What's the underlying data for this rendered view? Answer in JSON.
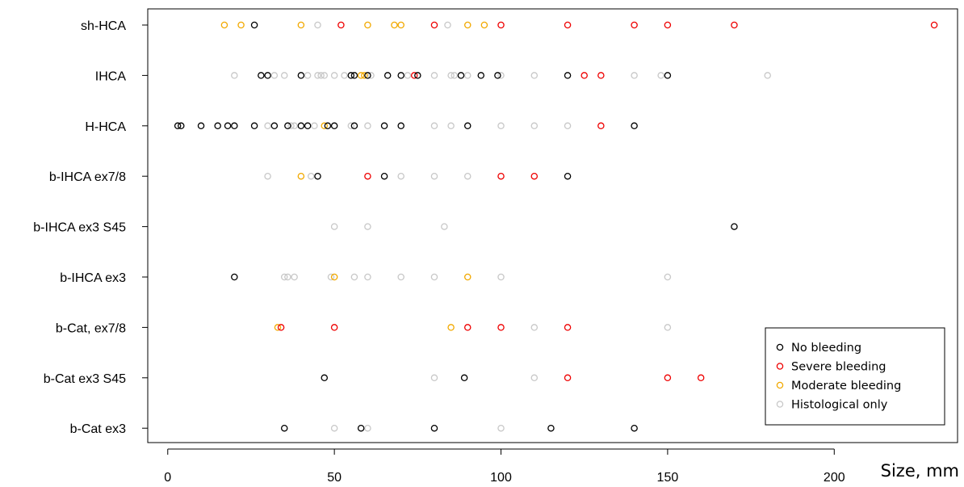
{
  "chart_data": {
    "type": "scatter",
    "xlabel": "Size, mm",
    "ylabel": "",
    "xlim": [
      -6,
      237
    ],
    "x_ticks": [
      "0",
      "50",
      "100",
      "150",
      "200"
    ],
    "x_tick_values": [
      0,
      50,
      100,
      150,
      200
    ],
    "categories": [
      "sh-HCA",
      "IHCA",
      "H-HCA",
      "b-IHCA ex7/8",
      "b-IHCA ex3 S45",
      "b-IHCA ex3",
      "b-Cat, ex7/8",
      "b-Cat ex3 S45",
      "b-Cat ex3"
    ],
    "legend_position": "bottom-right",
    "grid": false,
    "series": [
      {
        "name": "Histological only",
        "color": "#c8c8c8",
        "points": [
          {
            "category": "sh-HCA",
            "x": 45
          },
          {
            "category": "sh-HCA",
            "x": 84
          },
          {
            "category": "IHCA",
            "x": 20
          },
          {
            "category": "IHCA",
            "x": 32
          },
          {
            "category": "IHCA",
            "x": 35
          },
          {
            "category": "IHCA",
            "x": 42
          },
          {
            "category": "IHCA",
            "x": 45
          },
          {
            "category": "IHCA",
            "x": 46
          },
          {
            "category": "IHCA",
            "x": 47
          },
          {
            "category": "IHCA",
            "x": 50
          },
          {
            "category": "IHCA",
            "x": 53
          },
          {
            "category": "IHCA",
            "x": 61
          },
          {
            "category": "IHCA",
            "x": 72
          },
          {
            "category": "IHCA",
            "x": 80
          },
          {
            "category": "IHCA",
            "x": 85
          },
          {
            "category": "IHCA",
            "x": 86
          },
          {
            "category": "IHCA",
            "x": 90
          },
          {
            "category": "IHCA",
            "x": 100
          },
          {
            "category": "IHCA",
            "x": 110
          },
          {
            "category": "IHCA",
            "x": 140
          },
          {
            "category": "IHCA",
            "x": 148
          },
          {
            "category": "IHCA",
            "x": 180
          },
          {
            "category": "H-HCA",
            "x": 30
          },
          {
            "category": "H-HCA",
            "x": 37
          },
          {
            "category": "H-HCA",
            "x": 38
          },
          {
            "category": "H-HCA",
            "x": 44
          },
          {
            "category": "H-HCA",
            "x": 55
          },
          {
            "category": "H-HCA",
            "x": 60
          },
          {
            "category": "H-HCA",
            "x": 80
          },
          {
            "category": "H-HCA",
            "x": 85
          },
          {
            "category": "H-HCA",
            "x": 100
          },
          {
            "category": "H-HCA",
            "x": 110
          },
          {
            "category": "H-HCA",
            "x": 120
          },
          {
            "category": "b-IHCA ex7/8",
            "x": 30
          },
          {
            "category": "b-IHCA ex7/8",
            "x": 43
          },
          {
            "category": "b-IHCA ex7/8",
            "x": 70
          },
          {
            "category": "b-IHCA ex7/8",
            "x": 80
          },
          {
            "category": "b-IHCA ex7/8",
            "x": 90
          },
          {
            "category": "b-IHCA ex3 S45",
            "x": 50
          },
          {
            "category": "b-IHCA ex3 S45",
            "x": 60
          },
          {
            "category": "b-IHCA ex3 S45",
            "x": 83
          },
          {
            "category": "b-IHCA ex3",
            "x": 35
          },
          {
            "category": "b-IHCA ex3",
            "x": 36
          },
          {
            "category": "b-IHCA ex3",
            "x": 38
          },
          {
            "category": "b-IHCA ex3",
            "x": 49
          },
          {
            "category": "b-IHCA ex3",
            "x": 56
          },
          {
            "category": "b-IHCA ex3",
            "x": 60
          },
          {
            "category": "b-IHCA ex3",
            "x": 70
          },
          {
            "category": "b-IHCA ex3",
            "x": 80
          },
          {
            "category": "b-IHCA ex3",
            "x": 100
          },
          {
            "category": "b-IHCA ex3",
            "x": 150
          },
          {
            "category": "b-Cat, ex7/8",
            "x": 110
          },
          {
            "category": "b-Cat, ex7/8",
            "x": 150
          },
          {
            "category": "b-Cat ex3 S45",
            "x": 80
          },
          {
            "category": "b-Cat ex3 S45",
            "x": 110
          },
          {
            "category": "b-Cat ex3",
            "x": 50
          },
          {
            "category": "b-Cat ex3",
            "x": 60
          },
          {
            "category": "b-Cat ex3",
            "x": 100
          }
        ]
      },
      {
        "name": "Moderate bleeding",
        "color": "#f2a900",
        "points": [
          {
            "category": "sh-HCA",
            "x": 17
          },
          {
            "category": "sh-HCA",
            "x": 22
          },
          {
            "category": "sh-HCA",
            "x": 40
          },
          {
            "category": "sh-HCA",
            "x": 60
          },
          {
            "category": "sh-HCA",
            "x": 68
          },
          {
            "category": "sh-HCA",
            "x": 70
          },
          {
            "category": "sh-HCA",
            "x": 90
          },
          {
            "category": "sh-HCA",
            "x": 95
          },
          {
            "category": "IHCA",
            "x": 58
          },
          {
            "category": "IHCA",
            "x": 59
          },
          {
            "category": "H-HCA",
            "x": 47
          },
          {
            "category": "b-IHCA ex7/8",
            "x": 40
          },
          {
            "category": "b-IHCA ex3",
            "x": 50
          },
          {
            "category": "b-IHCA ex3",
            "x": 90
          },
          {
            "category": "b-Cat, ex7/8",
            "x": 33
          },
          {
            "category": "b-Cat, ex7/8",
            "x": 85
          }
        ]
      },
      {
        "name": "Severe bleeding",
        "color": "#ee0000",
        "points": [
          {
            "category": "sh-HCA",
            "x": 52
          },
          {
            "category": "sh-HCA",
            "x": 80
          },
          {
            "category": "sh-HCA",
            "x": 100
          },
          {
            "category": "sh-HCA",
            "x": 120
          },
          {
            "category": "sh-HCA",
            "x": 140
          },
          {
            "category": "sh-HCA",
            "x": 150
          },
          {
            "category": "sh-HCA",
            "x": 170
          },
          {
            "category": "sh-HCA",
            "x": 230
          },
          {
            "category": "IHCA",
            "x": 74
          },
          {
            "category": "IHCA",
            "x": 125
          },
          {
            "category": "IHCA",
            "x": 130
          },
          {
            "category": "H-HCA",
            "x": 130
          },
          {
            "category": "b-IHCA ex7/8",
            "x": 60
          },
          {
            "category": "b-IHCA ex7/8",
            "x": 100
          },
          {
            "category": "b-IHCA ex7/8",
            "x": 110
          },
          {
            "category": "b-Cat, ex7/8",
            "x": 34
          },
          {
            "category": "b-Cat, ex7/8",
            "x": 50
          },
          {
            "category": "b-Cat, ex7/8",
            "x": 90
          },
          {
            "category": "b-Cat, ex7/8",
            "x": 100
          },
          {
            "category": "b-Cat, ex7/8",
            "x": 120
          },
          {
            "category": "b-Cat ex3 S45",
            "x": 120
          },
          {
            "category": "b-Cat ex3 S45",
            "x": 150
          },
          {
            "category": "b-Cat ex3 S45",
            "x": 160
          }
        ]
      },
      {
        "name": "No bleeding",
        "color": "#000000",
        "points": [
          {
            "category": "sh-HCA",
            "x": 26
          },
          {
            "category": "IHCA",
            "x": 28
          },
          {
            "category": "IHCA",
            "x": 30
          },
          {
            "category": "IHCA",
            "x": 40
          },
          {
            "category": "IHCA",
            "x": 55
          },
          {
            "category": "IHCA",
            "x": 56
          },
          {
            "category": "IHCA",
            "x": 60
          },
          {
            "category": "IHCA",
            "x": 66
          },
          {
            "category": "IHCA",
            "x": 70
          },
          {
            "category": "IHCA",
            "x": 75
          },
          {
            "category": "IHCA",
            "x": 88
          },
          {
            "category": "IHCA",
            "x": 94
          },
          {
            "category": "IHCA",
            "x": 99
          },
          {
            "category": "IHCA",
            "x": 120
          },
          {
            "category": "IHCA",
            "x": 150
          },
          {
            "category": "H-HCA",
            "x": 3
          },
          {
            "category": "H-HCA",
            "x": 4
          },
          {
            "category": "H-HCA",
            "x": 10
          },
          {
            "category": "H-HCA",
            "x": 15
          },
          {
            "category": "H-HCA",
            "x": 18
          },
          {
            "category": "H-HCA",
            "x": 20
          },
          {
            "category": "H-HCA",
            "x": 26
          },
          {
            "category": "H-HCA",
            "x": 32
          },
          {
            "category": "H-HCA",
            "x": 36
          },
          {
            "category": "H-HCA",
            "x": 40
          },
          {
            "category": "H-HCA",
            "x": 42
          },
          {
            "category": "H-HCA",
            "x": 48
          },
          {
            "category": "H-HCA",
            "x": 50
          },
          {
            "category": "H-HCA",
            "x": 56
          },
          {
            "category": "H-HCA",
            "x": 65
          },
          {
            "category": "H-HCA",
            "x": 70
          },
          {
            "category": "H-HCA",
            "x": 90
          },
          {
            "category": "H-HCA",
            "x": 140
          },
          {
            "category": "b-IHCA ex7/8",
            "x": 45
          },
          {
            "category": "b-IHCA ex7/8",
            "x": 65
          },
          {
            "category": "b-IHCA ex7/8",
            "x": 120
          },
          {
            "category": "b-IHCA ex3 S45",
            "x": 170
          },
          {
            "category": "b-IHCA ex3",
            "x": 20
          },
          {
            "category": "b-Cat ex3 S45",
            "x": 47
          },
          {
            "category": "b-Cat ex3 S45",
            "x": 89
          },
          {
            "category": "b-Cat ex3",
            "x": 35
          },
          {
            "category": "b-Cat ex3",
            "x": 58
          },
          {
            "category": "b-Cat ex3",
            "x": 80
          },
          {
            "category": "b-Cat ex3",
            "x": 115
          },
          {
            "category": "b-Cat ex3",
            "x": 140
          }
        ]
      }
    ],
    "legend": [
      {
        "label": "No bleeding",
        "color": "#000000"
      },
      {
        "label": "Severe bleeding",
        "color": "#ee0000"
      },
      {
        "label": "Moderate bleeding",
        "color": "#f2a900"
      },
      {
        "label": "Histological only",
        "color": "#c8c8c8"
      }
    ]
  }
}
